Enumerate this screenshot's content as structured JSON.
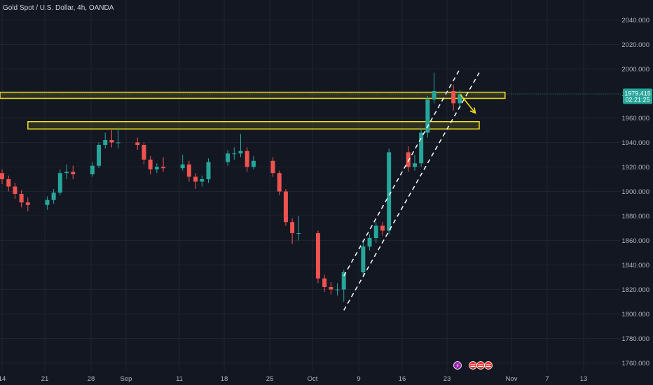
{
  "header": {
    "title": "Gold Spot / U.S. Dollar, 4h, OANDA"
  },
  "price_tag": {
    "price": "1979.415",
    "countdown": "02:21:25"
  },
  "colors": {
    "background": "#131722",
    "bull": "#26a69a",
    "bear": "#ef5350",
    "zone_stroke": "#f0e020",
    "zone_fill": "rgba(240,224,32,0.12)",
    "arrow": "#f5e11a",
    "channel": "#ffffff",
    "price_tag": "#26a69a",
    "grid": "#1f2433"
  },
  "event_icons": [
    {
      "name": "lightning-icon",
      "glyph": "⚡",
      "color": "#9c27b0"
    },
    {
      "name": "us-flag-icon",
      "glyph": "",
      "color": "#e53935"
    },
    {
      "name": "us-flag-icon",
      "glyph": "",
      "color": "#e53935"
    },
    {
      "name": "us-flag-icon",
      "glyph": "",
      "color": "#e53935"
    }
  ],
  "chart_data": {
    "type": "candlestick",
    "symbol": "Gold Spot / U.S. Dollar",
    "interval": "4h",
    "source": "OANDA",
    "ylim": [
      1755,
      2045
    ],
    "y_ticks": [
      "2040.000",
      "2020.000",
      "2000.000",
      "1980.000",
      "1960.000",
      "1940.000",
      "1920.000",
      "1900.000",
      "1880.000",
      "1860.000",
      "1840.000",
      "1820.000",
      "1800.000",
      "1780.000",
      "1760.000"
    ],
    "x_ticks": [
      "14",
      "21",
      "28",
      "Sep",
      "11",
      "18",
      "25",
      "Oct",
      "9",
      "16",
      "23",
      "Nov",
      "7",
      "13"
    ],
    "grid": true,
    "series": [
      {
        "date": "Aug 14",
        "open": 1915,
        "close": 1910,
        "high": 1918,
        "low": 1906
      },
      {
        "date": "Aug 15",
        "open": 1910,
        "close": 1904,
        "high": 1913,
        "low": 1900
      },
      {
        "date": "Aug 16",
        "open": 1904,
        "close": 1898,
        "high": 1907,
        "low": 1894
      },
      {
        "date": "Aug 17",
        "open": 1898,
        "close": 1891,
        "high": 1901,
        "low": 1887
      },
      {
        "date": "Aug 18",
        "open": 1891,
        "close": 1889,
        "high": 1895,
        "low": 1884
      },
      {
        "date": "Aug 21",
        "open": 1889,
        "close": 1893,
        "high": 1896,
        "low": 1885
      },
      {
        "date": "Aug 22",
        "open": 1893,
        "close": 1899,
        "high": 1902,
        "low": 1890
      },
      {
        "date": "Aug 23",
        "open": 1899,
        "close": 1915,
        "high": 1918,
        "low": 1897
      },
      {
        "date": "Aug 24",
        "open": 1915,
        "close": 1916,
        "high": 1922,
        "low": 1910
      },
      {
        "date": "Aug 25",
        "open": 1916,
        "close": 1914,
        "high": 1921,
        "low": 1910
      },
      {
        "date": "Aug 28",
        "open": 1914,
        "close": 1921,
        "high": 1924,
        "low": 1912
      },
      {
        "date": "Aug 29",
        "open": 1921,
        "close": 1938,
        "high": 1940,
        "low": 1919
      },
      {
        "date": "Aug 30",
        "open": 1938,
        "close": 1942,
        "high": 1948,
        "low": 1935
      },
      {
        "date": "Aug 31",
        "open": 1942,
        "close": 1940,
        "high": 1950,
        "low": 1936
      },
      {
        "date": "Sep 1",
        "open": 1940,
        "close": 1940,
        "high": 1952,
        "low": 1935
      },
      {
        "date": "Sep 4",
        "open": 1940,
        "close": 1938,
        "high": 1944,
        "low": 1934
      },
      {
        "date": "Sep 5",
        "open": 1938,
        "close": 1926,
        "high": 1940,
        "low": 1922
      },
      {
        "date": "Sep 6",
        "open": 1926,
        "close": 1918,
        "high": 1929,
        "low": 1914
      },
      {
        "date": "Sep 7",
        "open": 1918,
        "close": 1920,
        "high": 1923,
        "low": 1915
      },
      {
        "date": "Sep 8",
        "open": 1920,
        "close": 1919,
        "high": 1928,
        "low": 1916
      },
      {
        "date": "Sep 11",
        "open": 1919,
        "close": 1922,
        "high": 1930,
        "low": 1917
      },
      {
        "date": "Sep 12",
        "open": 1922,
        "close": 1912,
        "high": 1925,
        "low": 1908
      },
      {
        "date": "Sep 13",
        "open": 1912,
        "close": 1908,
        "high": 1915,
        "low": 1902
      },
      {
        "date": "Sep 14",
        "open": 1908,
        "close": 1910,
        "high": 1913,
        "low": 1904
      },
      {
        "date": "Sep 15",
        "open": 1910,
        "close": 1924,
        "high": 1927,
        "low": 1907
      },
      {
        "date": "Sep 18",
        "open": 1924,
        "close": 1931,
        "high": 1934,
        "low": 1921
      },
      {
        "date": "Sep 19",
        "open": 1931,
        "close": 1931,
        "high": 1936,
        "low": 1926
      },
      {
        "date": "Sep 20",
        "open": 1931,
        "close": 1933,
        "high": 1947,
        "low": 1928
      },
      {
        "date": "Sep 21",
        "open": 1933,
        "close": 1920,
        "high": 1936,
        "low": 1916
      },
      {
        "date": "Sep 22",
        "open": 1920,
        "close": 1925,
        "high": 1929,
        "low": 1918
      },
      {
        "date": "Sep 25",
        "open": 1925,
        "close": 1915,
        "high": 1928,
        "low": 1912
      },
      {
        "date": "Sep 26",
        "open": 1915,
        "close": 1900,
        "high": 1917,
        "low": 1897
      },
      {
        "date": "Sep 27",
        "open": 1900,
        "close": 1875,
        "high": 1902,
        "low": 1872
      },
      {
        "date": "Sep 28",
        "open": 1875,
        "close": 1866,
        "high": 1878,
        "low": 1857
      },
      {
        "date": "Sep 29",
        "open": 1866,
        "close": 1866,
        "high": 1880,
        "low": 1860
      },
      {
        "date": "Oct 2",
        "open": 1866,
        "close": 1829,
        "high": 1868,
        "low": 1825
      },
      {
        "date": "Oct 3",
        "open": 1829,
        "close": 1822,
        "high": 1832,
        "low": 1818
      },
      {
        "date": "Oct 4",
        "open": 1822,
        "close": 1820,
        "high": 1826,
        "low": 1816
      },
      {
        "date": "Oct 5",
        "open": 1820,
        "close": 1820,
        "high": 1825,
        "low": 1815
      },
      {
        "date": "Oct 6",
        "open": 1820,
        "close": 1834,
        "high": 1836,
        "low": 1810
      },
      {
        "date": "Oct 9",
        "open": 1834,
        "close": 1855,
        "high": 1860,
        "low": 1830
      },
      {
        "date": "Oct 10",
        "open": 1855,
        "close": 1862,
        "high": 1865,
        "low": 1852
      },
      {
        "date": "Oct 11",
        "open": 1862,
        "close": 1872,
        "high": 1875,
        "low": 1858
      },
      {
        "date": "Oct 12",
        "open": 1872,
        "close": 1868,
        "high": 1875,
        "low": 1864
      },
      {
        "date": "Oct 13",
        "open": 1868,
        "close": 1932,
        "high": 1935,
        "low": 1865
      },
      {
        "date": "Oct 16",
        "open": 1932,
        "close": 1920,
        "high": 1937,
        "low": 1916
      },
      {
        "date": "Oct 17",
        "open": 1920,
        "close": 1923,
        "high": 1930,
        "low": 1917
      },
      {
        "date": "Oct 18",
        "open": 1923,
        "close": 1948,
        "high": 1952,
        "low": 1920
      },
      {
        "date": "Oct 19",
        "open": 1948,
        "close": 1975,
        "high": 1978,
        "low": 1944
      },
      {
        "date": "Oct 20",
        "open": 1975,
        "close": 1982,
        "high": 1997,
        "low": 1972
      },
      {
        "date": "Oct 23",
        "open": 1982,
        "close": 1972,
        "high": 1987,
        "low": 1966
      },
      {
        "date": "Oct 24",
        "open": 1972,
        "close": 1979.4,
        "high": 1983,
        "low": 1968
      }
    ],
    "annotations": [
      {
        "type": "zone",
        "label": "resistance zone",
        "y_low": 1976,
        "y_high": 1981,
        "start": "Aug 14",
        "end": "Oct 31"
      },
      {
        "type": "zone",
        "label": "support zone",
        "y_low": 1951,
        "y_high": 1957,
        "start": "Aug 18",
        "end": "Oct 27"
      },
      {
        "type": "channel",
        "style": "dashed",
        "lines": [
          {
            "from": [
              "Oct 6",
              1831
            ],
            "to": [
              "Oct 24",
              2000
            ]
          },
          {
            "from": [
              "Oct 6",
              1803
            ],
            "to": [
              "Oct 27",
              1997
            ]
          }
        ]
      },
      {
        "type": "arrow",
        "from": [
          "Oct 23",
          1979
        ],
        "to": [
          "Oct 24",
          1964
        ]
      }
    ]
  }
}
